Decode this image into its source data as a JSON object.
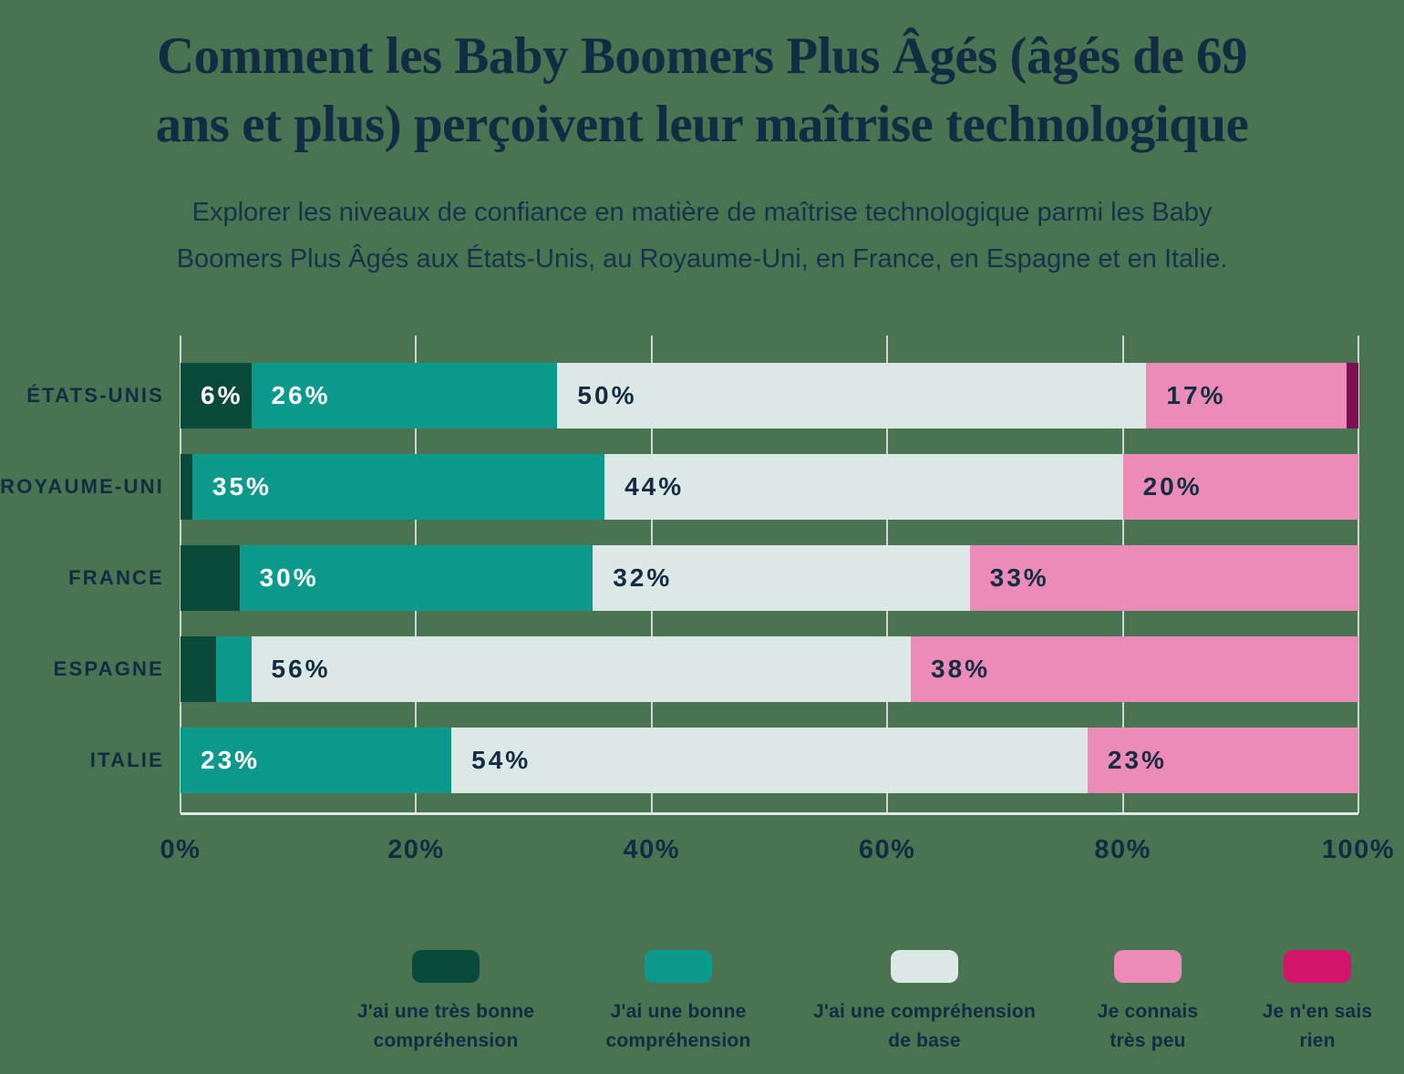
{
  "page": {
    "background_color": "#4a7351",
    "text_color": "#122c44",
    "title_line1": "Comment les Baby Boomers Plus Âgés (âgés de 69",
    "title_line2": "ans et plus) perçoivent leur maîtrise technologique",
    "subtitle_line1": "Explorer les niveaux de confiance en matière de maîtrise technologique parmi les Baby",
    "subtitle_line2": "Boomers Plus Âgés aux États-Unis, au Royaume-Uni, en France, en Espagne et en Italie."
  },
  "chart_data": {
    "type": "bar",
    "subtype": "horizontal-stacked-percent",
    "title": "Comment les Baby Boomers Plus Âgés (âgés de 69 ans et plus) perçoivent leur maîtrise technologique",
    "xlabel": "",
    "ylabel": "",
    "xlim": [
      0,
      100
    ],
    "grid": "vertical",
    "legend_position": "bottom",
    "categories": [
      "ÉTATS-UNIS",
      "ROYAUME-UNI",
      "FRANCE",
      "ESPAGNE",
      "ITALIE"
    ],
    "x_ticks": [
      "0%",
      "20%",
      "40%",
      "60%",
      "80%",
      "100%"
    ],
    "series": [
      {
        "name": "J'ai une très bonne compréhension",
        "color": "#0a4a3a",
        "legend_color": "#0a4a3a",
        "label_color": "#ffffff",
        "values": [
          6,
          1,
          5,
          3,
          0
        ]
      },
      {
        "name": "J'ai une bonne compréhension",
        "color": "#0a998b",
        "legend_color": "#0a998b",
        "label_color": "#ffffff",
        "values": [
          26,
          35,
          30,
          3,
          23
        ]
      },
      {
        "name": "J'ai une compréhension de base",
        "color": "#dce8e5",
        "legend_color": "#dce8e5",
        "label_color": "#122c44",
        "values": [
          50,
          44,
          32,
          56,
          54
        ]
      },
      {
        "name": "Je connais très peu",
        "color": "#ec8bb8",
        "legend_color": "#ec8bb8",
        "label_color": "#122c44",
        "values": [
          17,
          20,
          33,
          38,
          23
        ]
      },
      {
        "name": "Je n'en sais rien",
        "color": "#7d1053",
        "legend_color": "#d3146b",
        "label_color": "#ffffff",
        "values": [
          1,
          0,
          0,
          0,
          0
        ]
      }
    ],
    "value_labels": [
      [
        "6%",
        "26%",
        "50%",
        "17%",
        ""
      ],
      [
        "",
        "35%",
        "44%",
        "20%",
        ""
      ],
      [
        "",
        "30%",
        "32%",
        "33%",
        ""
      ],
      [
        "",
        "",
        "56%",
        "38%",
        ""
      ],
      [
        "",
        "23%",
        "54%",
        "23%",
        ""
      ]
    ],
    "gridline_color": "#ccd8d2",
    "axis_line_color": "#dfe9e3"
  }
}
